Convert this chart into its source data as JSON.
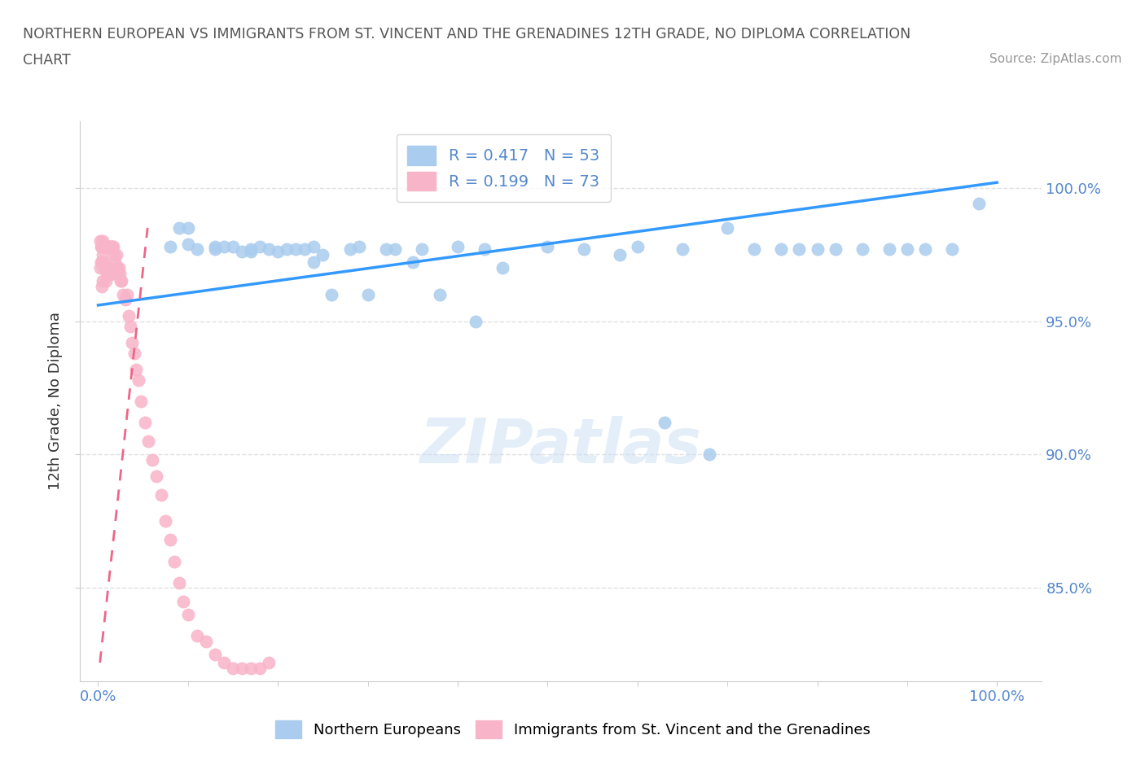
{
  "title_line1": "NORTHERN EUROPEAN VS IMMIGRANTS FROM ST. VINCENT AND THE GRENADINES 12TH GRADE, NO DIPLOMA CORRELATION",
  "title_line2": "CHART",
  "source_text": "Source: ZipAtlas.com",
  "ylabel": "12th Grade, No Diploma",
  "xticklabels": [
    "0.0%",
    "",
    "",
    "",
    "",
    "",
    "",
    "",
    "",
    "100.0%"
  ],
  "xtick_vals": [
    0.0,
    0.1,
    0.2,
    0.3,
    0.4,
    0.5,
    0.6,
    0.7,
    0.8,
    1.0
  ],
  "yticklabels_right": [
    "100.0%",
    "95.0%",
    "90.0%",
    "85.0%"
  ],
  "ytick_vals": [
    1.0,
    0.95,
    0.9,
    0.85
  ],
  "ylim": [
    0.815,
    1.025
  ],
  "xlim": [
    -0.02,
    1.05
  ],
  "blue_color": "#aaccee",
  "pink_color": "#f8b4c8",
  "blue_line_color": "#3399ff",
  "pink_line_color": "#ee6688",
  "watermark_text": "ZIPatlas",
  "title_color": "#555555",
  "grid_color": "#e0e0e0",
  "tick_color": "#5588cc",
  "blue_scatter_x": [
    0.08,
    0.09,
    0.1,
    0.1,
    0.11,
    0.13,
    0.13,
    0.14,
    0.15,
    0.16,
    0.17,
    0.17,
    0.18,
    0.19,
    0.2,
    0.21,
    0.22,
    0.23,
    0.24,
    0.24,
    0.25,
    0.26,
    0.28,
    0.29,
    0.3,
    0.32,
    0.33,
    0.35,
    0.36,
    0.38,
    0.4,
    0.42,
    0.43,
    0.45,
    0.5,
    0.54,
    0.58,
    0.6,
    0.63,
    0.65,
    0.68,
    0.7,
    0.73,
    0.76,
    0.78,
    0.8,
    0.82,
    0.85,
    0.88,
    0.9,
    0.92,
    0.95,
    0.98
  ],
  "blue_scatter_y": [
    0.978,
    0.985,
    0.985,
    0.979,
    0.977,
    0.978,
    0.977,
    0.978,
    0.978,
    0.976,
    0.977,
    0.976,
    0.978,
    0.977,
    0.976,
    0.977,
    0.977,
    0.977,
    0.978,
    0.972,
    0.975,
    0.96,
    0.977,
    0.978,
    0.96,
    0.977,
    0.977,
    0.972,
    0.977,
    0.96,
    0.978,
    0.95,
    0.977,
    0.97,
    0.978,
    0.977,
    0.975,
    0.978,
    0.912,
    0.977,
    0.9,
    0.985,
    0.977,
    0.977,
    0.977,
    0.977,
    0.977,
    0.977,
    0.977,
    0.977,
    0.977,
    0.977,
    0.994
  ],
  "pink_scatter_x": [
    0.002,
    0.002,
    0.003,
    0.003,
    0.004,
    0.004,
    0.004,
    0.005,
    0.005,
    0.005,
    0.006,
    0.006,
    0.007,
    0.007,
    0.008,
    0.008,
    0.009,
    0.009,
    0.01,
    0.01,
    0.011,
    0.011,
    0.012,
    0.012,
    0.013,
    0.013,
    0.014,
    0.014,
    0.015,
    0.015,
    0.016,
    0.016,
    0.017,
    0.017,
    0.018,
    0.019,
    0.02,
    0.021,
    0.022,
    0.023,
    0.024,
    0.025,
    0.026,
    0.028,
    0.03,
    0.032,
    0.034,
    0.036,
    0.038,
    0.04,
    0.042,
    0.045,
    0.048,
    0.052,
    0.056,
    0.06,
    0.065,
    0.07,
    0.075,
    0.08,
    0.085,
    0.09,
    0.095,
    0.1,
    0.11,
    0.12,
    0.13,
    0.14,
    0.15,
    0.16,
    0.17,
    0.18,
    0.19
  ],
  "pink_scatter_y": [
    0.98,
    0.97,
    0.978,
    0.972,
    0.978,
    0.972,
    0.963,
    0.98,
    0.975,
    0.965,
    0.978,
    0.972,
    0.978,
    0.97,
    0.978,
    0.97,
    0.978,
    0.965,
    0.978,
    0.968,
    0.978,
    0.968,
    0.978,
    0.97,
    0.978,
    0.968,
    0.978,
    0.968,
    0.978,
    0.968,
    0.978,
    0.968,
    0.978,
    0.968,
    0.975,
    0.972,
    0.975,
    0.97,
    0.968,
    0.97,
    0.968,
    0.965,
    0.965,
    0.96,
    0.958,
    0.96,
    0.952,
    0.948,
    0.942,
    0.938,
    0.932,
    0.928,
    0.92,
    0.912,
    0.905,
    0.898,
    0.892,
    0.885,
    0.875,
    0.868,
    0.86,
    0.852,
    0.845,
    0.84,
    0.832,
    0.83,
    0.825,
    0.822,
    0.82,
    0.82,
    0.82,
    0.82,
    0.822
  ],
  "pink_line_x_start": 0.002,
  "pink_line_x_end": 0.055,
  "blue_line_x_start": 0.0,
  "blue_line_x_end": 1.0
}
